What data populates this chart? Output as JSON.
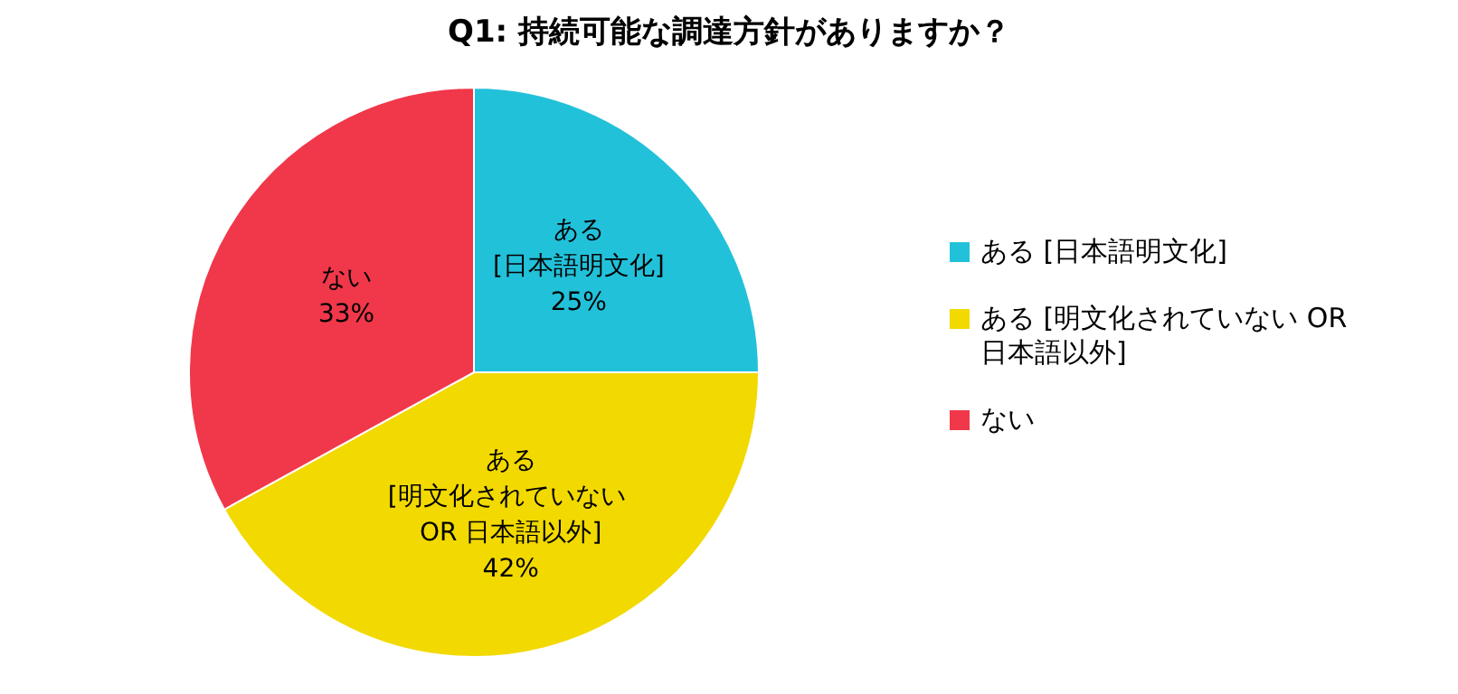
{
  "chart_data": {
    "type": "pie",
    "title": "Q1: 持続可能な調達方針がありますか？",
    "categories": [
      "ある [日本語明文化]",
      "ある [明文化されていない OR 日本語以外]",
      "ない"
    ],
    "values": [
      25,
      42,
      33
    ],
    "colors": [
      "#22c1da",
      "#f2d900",
      "#f0384a"
    ],
    "value_labels": [
      "25%",
      "42%",
      "33%"
    ],
    "legend": "right"
  }
}
